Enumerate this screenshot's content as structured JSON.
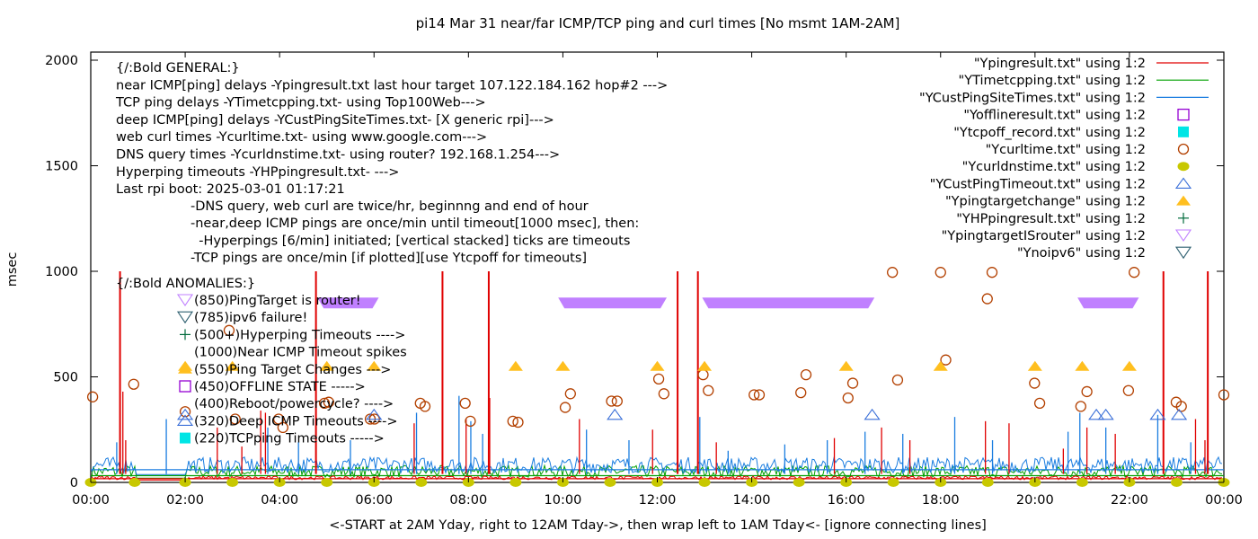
{
  "chart_data": {
    "type": "line",
    "title": "pi14 Mar 31  near/far ICMP/TCP ping and curl times [No msmt 1AM-2AM]",
    "xlabel": "<-START at 2AM Yday, right to 12AM Tday->, then wrap left to 1AM Tday<- [ignore connecting lines]",
    "ylabel": "msec",
    "xlim_hours": [
      0,
      24
    ],
    "ylim": [
      0,
      2000
    ],
    "x_ticks": [
      "00:00",
      "02:00",
      "04:00",
      "06:00",
      "08:00",
      "10:00",
      "12:00",
      "14:00",
      "16:00",
      "18:00",
      "20:00",
      "22:00",
      "00:00"
    ],
    "y_ticks": [
      0,
      500,
      1000,
      1500,
      2000
    ],
    "grid": false,
    "legend_position": "top-right",
    "colors": {
      "ping": "#e00000",
      "tcp": "#00a000",
      "deep": "#1a7de0",
      "offline": "#9400d3",
      "tcpoff": "#00e5e5",
      "curl": "#b34000",
      "dns": "#c8c800",
      "custtimeout": "#3a6fd8",
      "targetchange": "#ffbf1f",
      "hp": "#006b3c",
      "isrouter": "#c080ff",
      "noipv6": "#2f6070"
    },
    "legend": [
      {
        "label": "\"Ypingresult.txt\" using 1:2",
        "style": "line",
        "color_key": "ping"
      },
      {
        "label": "\"YTimetcpping.txt\" using 1:2",
        "style": "line",
        "color_key": "tcp"
      },
      {
        "label": "\"YCustPingSiteTimes.txt\" using 1:2",
        "style": "line",
        "color_key": "deep"
      },
      {
        "label": "\"Yofflineresult.txt\" using 1:2",
        "style": "open-square",
        "color_key": "offline"
      },
      {
        "label": "\"Ytcpoff_record.txt\" using 1:2",
        "style": "filled-square",
        "color_key": "tcpoff"
      },
      {
        "label": "\"Ycurltime.txt\" using 1:2",
        "style": "open-circle",
        "color_key": "curl"
      },
      {
        "label": "\"Ycurldnstime.txt\" using 1:2",
        "style": "filled-circle",
        "color_key": "dns"
      },
      {
        "label": "\"YCustPingTimeout.txt\" using 1:2",
        "style": "open-triangle",
        "color_key": "custtimeout"
      },
      {
        "label": "\"Ypingtargetchange\" using 1:2",
        "style": "filled-triangle",
        "color_key": "targetchange"
      },
      {
        "label": "\"YHPpingresult.txt\" using 1:2",
        "style": "plus",
        "color_key": "hp"
      },
      {
        "label": "\"YpingtargetISrouter\" using 1:2",
        "style": "open-down-triangle",
        "color_key": "isrouter"
      },
      {
        "label": "\"Ynoipv6\" using 1:2",
        "style": "open-down-triangle",
        "color_key": "noipv6"
      }
    ],
    "annotations": {
      "general": [
        "{/:Bold GENERAL:}",
        "near ICMP[ping] delays -Ypingresult.txt last hour target 107.122.184.162 hop#2 --->",
        "TCP ping delays -YTimetcpping.txt- using Top100Web--->",
        "deep ICMP[ping] delays -YCustPingSiteTimes.txt- [X generic rpi]--->",
        "web curl times -Ycurltime.txt- using www.google.com--->",
        "DNS query times -Ycurldnstime.txt- using router? 192.168.1.254--->",
        "Hyperping timeouts -YHPpingresult.txt- --->",
        "Last rpi boot: 2025-03-01 01:17:21"
      ],
      "notes": [
        "-DNS query, web curl are twice/hr, beginnng and end of hour",
        "-near,deep ICMP pings are once/min until timeout[1000 msec], then:",
        "  -Hyperpings [6/min] initiated; [vertical stacked] ticks are timeouts",
        "-TCP pings are once/min [if plotted][use Ytcpoff for timeouts]"
      ],
      "anomalies_title": "{/:Bold ANOMALIES:}",
      "anomalies": [
        {
          "marker": "open-down-triangle",
          "color_key": "isrouter",
          "text": "(850)PingTarget is router!"
        },
        {
          "marker": "open-down-triangle",
          "color_key": "noipv6",
          "text": "(785)ipv6 failure!"
        },
        {
          "marker": "plus",
          "color_key": "hp",
          "text": "(500+)Hyperping Timeouts ---->"
        },
        {
          "marker": "none",
          "color_key": "ping",
          "text": "(1000)Near ICMP Timeout spikes"
        },
        {
          "marker": "filled-triangle",
          "color_key": "targetchange",
          "text": "(550)Ping Target Changes --->"
        },
        {
          "marker": "open-square",
          "color_key": "offline",
          "text": "(450)OFFLINE STATE ----->"
        },
        {
          "marker": "none",
          "color_key": "curl",
          "text": "(400)Reboot/powercycle? ---->"
        },
        {
          "marker": "open-triangle",
          "color_key": "custtimeout",
          "text": "(320)Deep ICMP Timeouts ---->"
        },
        {
          "marker": "filled-square",
          "color_key": "tcpoff",
          "text": "(220)TCPping Timeouts ----->"
        }
      ]
    },
    "series": [
      {
        "name": "Ycurltime.txt",
        "style": "open-circle",
        "x": [
          0.04,
          0.91,
          2.0,
          2.93,
          3.06,
          3.98,
          4.07,
          4.95,
          5.04,
          5.92,
          6.01,
          6.98,
          7.08,
          7.93,
          8.04,
          8.94,
          9.05,
          10.05,
          10.16,
          11.03,
          11.15,
          12.03,
          12.14,
          12.97,
          13.08,
          14.05,
          14.16,
          15.04,
          15.15,
          16.04,
          16.14,
          16.98,
          17.09,
          18.0,
          18.11,
          18.99,
          19.09,
          19.99,
          20.1,
          20.97,
          21.1,
          21.98,
          22.1,
          22.99,
          23.1,
          24.0
        ],
        "y": [
          405,
          465,
          335,
          720,
          300,
          300,
          260,
          375,
          380,
          300,
          300,
          375,
          360,
          375,
          290,
          290,
          285,
          355,
          420,
          385,
          385,
          490,
          420,
          510,
          435,
          415,
          415,
          425,
          510,
          400,
          470,
          995,
          485,
          995,
          580,
          870,
          995,
          470,
          375,
          360,
          430,
          435,
          995,
          380,
          360,
          415
        ]
      },
      {
        "name": "Ycurldnstime.txt",
        "style": "filled-circle",
        "x": [
          0.0,
          0.93,
          2.0,
          3.0,
          4.0,
          5.0,
          6.0,
          7.0,
          8.0,
          9.0,
          10.0,
          11.0,
          12.0,
          13.0,
          14.0,
          15.0,
          16.0,
          17.0,
          18.0,
          19.0,
          20.0,
          21.0,
          22.0,
          23.0,
          24.0
        ],
        "y": [
          0,
          0,
          0,
          0,
          0,
          0,
          0,
          0,
          0,
          0,
          0,
          0,
          0,
          0,
          0,
          0,
          0,
          0,
          0,
          0,
          0,
          0,
          0,
          0,
          0
        ]
      },
      {
        "name": "Ypingtargetchange",
        "style": "filled-triangle",
        "x": [
          2.0,
          3.0,
          5.0,
          6.0,
          9.0,
          10.0,
          12.0,
          13.0,
          16.0,
          18.0,
          20.0,
          21.0,
          22.0
        ],
        "y": [
          550,
          550,
          550,
          550,
          550,
          550,
          550,
          550,
          550,
          550,
          550,
          550,
          550
        ]
      },
      {
        "name": "YCustPingTimeout.txt",
        "style": "open-triangle",
        "x": [
          2.0,
          6.0,
          11.1,
          16.55,
          21.3,
          21.5,
          22.6,
          23.05
        ],
        "y": [
          320,
          320,
          320,
          320,
          320,
          320,
          320,
          320
        ]
      },
      {
        "name": "YpingtargetISrouter",
        "style": "open-down-triangle-band",
        "ranges_hours": [
          [
            4.8,
            6.1
          ],
          [
            9.9,
            12.2
          ],
          [
            12.95,
            16.6
          ],
          [
            20.9,
            22.2
          ]
        ],
        "y": 850
      },
      {
        "name": "Ypingresult.txt (timeout spikes)",
        "style": "spikes",
        "x": [
          0.62,
          4.77,
          7.45,
          8.43,
          12.43,
          12.86,
          22.72,
          23.66
        ],
        "y": [
          1000,
          1000,
          1000,
          1000,
          1000,
          1000,
          1000,
          1000
        ]
      },
      {
        "name": "Ypingresult.txt (secondary spikes)",
        "style": "spikes",
        "x": [
          0.68,
          0.74,
          2.68,
          3.2,
          3.6,
          3.7,
          6.85,
          7.95,
          8.45,
          10.35,
          11.9,
          13.25,
          15.75,
          16.75,
          17.35,
          18.95,
          19.45,
          20.6,
          21.1,
          21.7,
          23.4,
          23.6
        ],
        "y": [
          430,
          200,
          260,
          170,
          340,
          330,
          280,
          300,
          400,
          300,
          250,
          190,
          210,
          260,
          200,
          290,
          280,
          160,
          260,
          230,
          300,
          200
        ]
      },
      {
        "name": "YCustPingSiteTimes.txt (peaks)",
        "style": "spikes",
        "x": [
          0.55,
          1.6,
          3.75,
          4.4,
          5.5,
          6.9,
          7.8,
          8.05,
          8.3,
          10.5,
          11.4,
          12.9,
          13.5,
          14.7,
          15.6,
          16.4,
          17.2,
          18.3,
          19.1,
          20.7,
          20.95,
          21.5,
          22.6,
          23.3
        ],
        "y": [
          190,
          300,
          260,
          190,
          200,
          330,
          410,
          290,
          230,
          250,
          200,
          310,
          150,
          180,
          200,
          240,
          230,
          310,
          200,
          240,
          330,
          260,
          320,
          190
        ]
      },
      {
        "name": "YTimetcpping.txt (baseline)",
        "style": "noise-line",
        "baseline_msec": 40,
        "peak_msec": 80
      },
      {
        "name": "YCustPingSiteTimes.txt (baseline)",
        "style": "noise-line",
        "baseline_msec": 75,
        "peak_msec": 120
      },
      {
        "name": "Ypingresult.txt (baseline)",
        "style": "noise-line",
        "baseline_msec": 22,
        "peak_msec": 30
      }
    ]
  }
}
